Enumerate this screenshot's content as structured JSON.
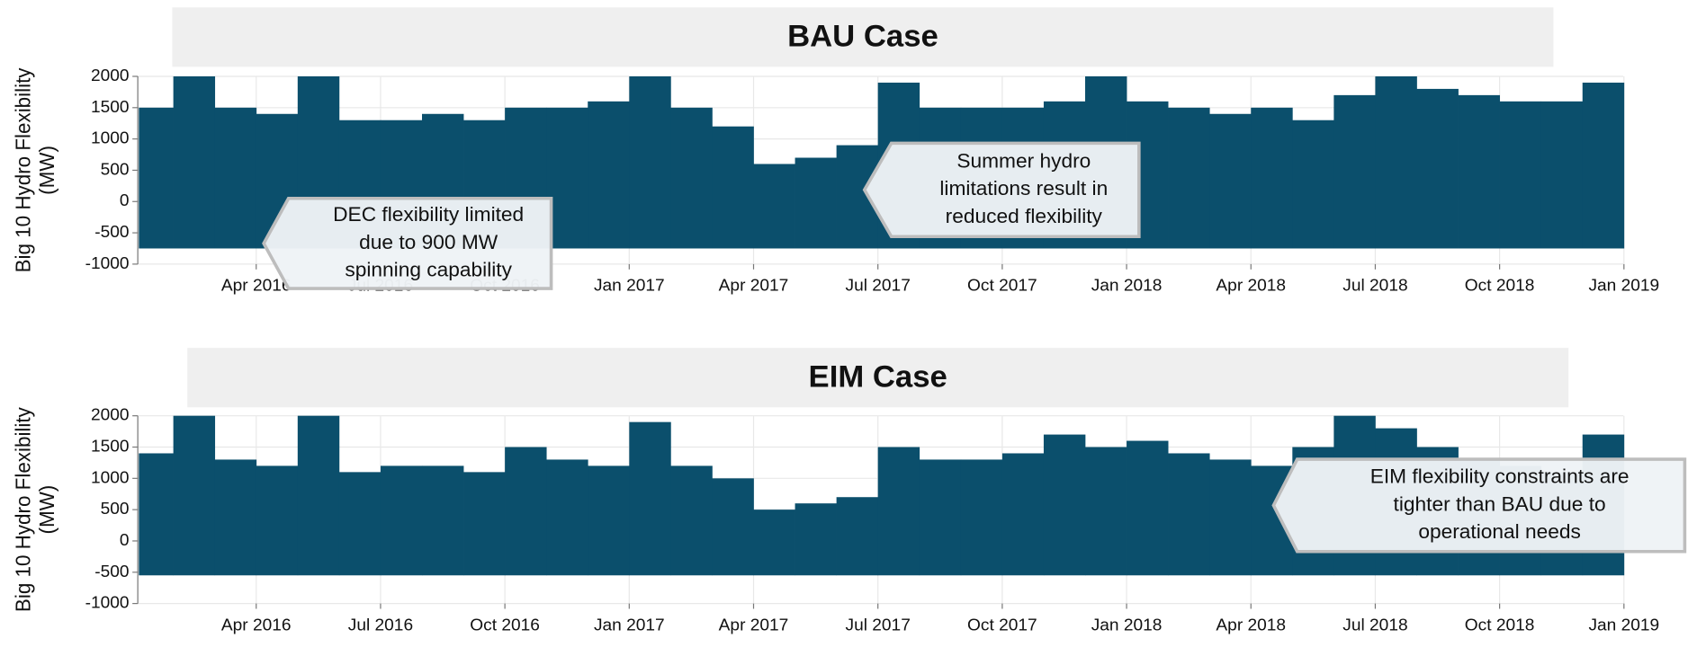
{
  "chart_data": [
    {
      "type": "range_area",
      "title": "BAU Case",
      "ylabel": [
        "Big 10 Hydro Flexibility",
        "(MW)"
      ],
      "color": "#0b4f6c",
      "x": [
        "2016-01",
        "2016-02",
        "2016-03",
        "2016-04",
        "2016-05",
        "2016-06",
        "2016-07",
        "2016-08",
        "2016-09",
        "2016-10",
        "2016-11",
        "2016-12",
        "2017-01",
        "2017-02",
        "2017-03",
        "2017-04",
        "2017-05",
        "2017-06",
        "2017-07",
        "2017-08",
        "2017-09",
        "2017-10",
        "2017-11",
        "2017-12",
        "2018-01",
        "2018-02",
        "2018-03",
        "2018-04",
        "2018-05",
        "2018-06",
        "2018-07",
        "2018-08",
        "2018-09",
        "2018-10",
        "2018-11",
        "2018-12"
      ],
      "high": [
        1500,
        2000,
        1500,
        1400,
        2000,
        1300,
        1300,
        1400,
        1300,
        1500,
        1500,
        1600,
        2000,
        1500,
        1200,
        600,
        700,
        900,
        1900,
        1500,
        1500,
        1500,
        1600,
        2000,
        1600,
        1500,
        1400,
        1500,
        1300,
        1700,
        2000,
        1800,
        1700,
        1600,
        1600,
        1900
      ],
      "low": [
        -750,
        -750,
        -750,
        -750,
        -750,
        -750,
        -750,
        -750,
        -750,
        -750,
        -750,
        -750,
        -750,
        -750,
        -750,
        -750,
        -750,
        -750,
        -750,
        -750,
        -750,
        -750,
        -750,
        -750,
        -750,
        -750,
        -750,
        -750,
        -750,
        -750,
        -750,
        -750,
        -750,
        -750,
        -750,
        -750
      ],
      "xlim": [
        "2016-01",
        "2019-01"
      ],
      "xticks": [
        {
          "value": "2016-04",
          "label": "Apr 2016"
        },
        {
          "value": "2016-07",
          "label": "Jul 2016"
        },
        {
          "value": "2016-10",
          "label": "Oct 2016"
        },
        {
          "value": "2017-01",
          "label": "Jan 2017"
        },
        {
          "value": "2017-04",
          "label": "Apr 2017"
        },
        {
          "value": "2017-07",
          "label": "Jul 2017"
        },
        {
          "value": "2017-10",
          "label": "Oct 2017"
        },
        {
          "value": "2018-01",
          "label": "Jan 2018"
        },
        {
          "value": "2018-04",
          "label": "Apr 2018"
        },
        {
          "value": "2018-07",
          "label": "Jul 2018"
        },
        {
          "value": "2018-10",
          "label": "Oct 2018"
        },
        {
          "value": "2019-01",
          "label": "Jan 2019"
        }
      ],
      "ylim": [
        -1000,
        2000
      ],
      "yticks": [
        -1000,
        -500,
        0,
        500,
        1000,
        1500,
        2000
      ],
      "grid": true,
      "annotations": [
        {
          "lines": [
            "DEC flexibility limited",
            "due to 900 MW",
            "spinning capability"
          ]
        },
        {
          "lines": [
            "Summer hydro",
            "limitations result in",
            "reduced flexibility"
          ]
        }
      ]
    },
    {
      "type": "range_area",
      "title": "EIM Case",
      "ylabel": [
        "Big 10 Hydro Flexibility",
        "(MW)"
      ],
      "color": "#0b4f6c",
      "x": [
        "2016-01",
        "2016-02",
        "2016-03",
        "2016-04",
        "2016-05",
        "2016-06",
        "2016-07",
        "2016-08",
        "2016-09",
        "2016-10",
        "2016-11",
        "2016-12",
        "2017-01",
        "2017-02",
        "2017-03",
        "2017-04",
        "2017-05",
        "2017-06",
        "2017-07",
        "2017-08",
        "2017-09",
        "2017-10",
        "2017-11",
        "2017-12",
        "2018-01",
        "2018-02",
        "2018-03",
        "2018-04",
        "2018-05",
        "2018-06",
        "2018-07",
        "2018-08",
        "2018-09",
        "2018-10",
        "2018-11",
        "2018-12"
      ],
      "high": [
        1400,
        2000,
        1300,
        1200,
        2000,
        1100,
        1200,
        1200,
        1100,
        1500,
        1300,
        1200,
        1900,
        1200,
        1000,
        500,
        600,
        700,
        1500,
        1300,
        1300,
        1400,
        1700,
        1500,
        1600,
        1400,
        1300,
        1200,
        1500,
        2000,
        1800,
        1500,
        1300,
        1200,
        1100,
        1700
      ],
      "low": [
        -550,
        -550,
        -550,
        -550,
        -550,
        -550,
        -550,
        -550,
        -550,
        -550,
        -550,
        -550,
        -550,
        -550,
        -550,
        -550,
        -550,
        -550,
        -550,
        -550,
        -550,
        -550,
        -550,
        -550,
        -550,
        -550,
        -550,
        -550,
        -550,
        -550,
        -550,
        -550,
        -550,
        -550,
        -550,
        -550
      ],
      "xlim": [
        "2016-01",
        "2019-01"
      ],
      "xticks": [
        {
          "value": "2016-04",
          "label": "Apr 2016"
        },
        {
          "value": "2016-07",
          "label": "Jul 2016"
        },
        {
          "value": "2016-10",
          "label": "Oct 2016"
        },
        {
          "value": "2017-01",
          "label": "Jan 2017"
        },
        {
          "value": "2017-04",
          "label": "Apr 2017"
        },
        {
          "value": "2017-07",
          "label": "Jul 2017"
        },
        {
          "value": "2017-10",
          "label": "Oct 2017"
        },
        {
          "value": "2018-01",
          "label": "Jan 2018"
        },
        {
          "value": "2018-04",
          "label": "Apr 2018"
        },
        {
          "value": "2018-07",
          "label": "Jul 2018"
        },
        {
          "value": "2018-10",
          "label": "Oct 2018"
        },
        {
          "value": "2019-01",
          "label": "Jan 2019"
        }
      ],
      "ylim": [
        -1000,
        2000
      ],
      "yticks": [
        -1000,
        -500,
        0,
        500,
        1000,
        1500,
        2000
      ],
      "grid": true,
      "annotations": [
        {
          "lines": [
            "EIM flexibility constraints are",
            "tighter than BAU due to",
            "operational needs"
          ]
        }
      ]
    }
  ]
}
